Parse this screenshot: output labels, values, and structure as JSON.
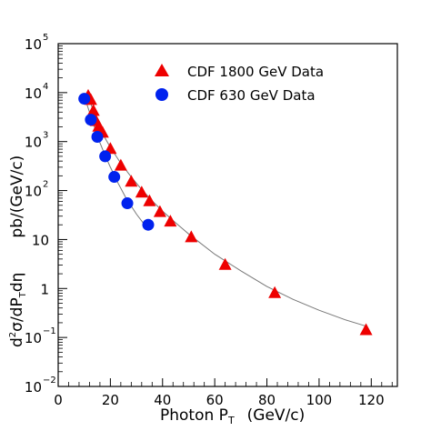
{
  "chart_data": {
    "type": "scatter",
    "xlabel": "Photon P_T  (GeV/c)",
    "ylabel": "d²σ/dP_T dη  pb/(GeV/c)",
    "xlim": [
      0,
      130
    ],
    "ylim": [
      0.01,
      100000
    ],
    "y_scale": "log",
    "grid": false,
    "legend_position": "top-right",
    "x_ticks": [
      0,
      20,
      40,
      60,
      80,
      100,
      120
    ],
    "y_ticks": [
      {
        "value": 0.01,
        "base": "10",
        "exp": "−2"
      },
      {
        "value": 0.1,
        "base": "10",
        "exp": "−1"
      },
      {
        "value": 1,
        "base": "1",
        "exp": ""
      },
      {
        "value": 10,
        "base": "10",
        "exp": ""
      },
      {
        "value": 100,
        "base": "10",
        "exp": "2"
      },
      {
        "value": 1000,
        "base": "10",
        "exp": "3"
      },
      {
        "value": 10000,
        "base": "10",
        "exp": "4"
      },
      {
        "value": 100000,
        "base": "10",
        "exp": "5"
      }
    ],
    "series": [
      {
        "name": "CDF 1800 GeV Data",
        "marker": "triangle",
        "color": "#ee0000",
        "points": [
          {
            "x": 11.5,
            "y": 8500
          },
          {
            "x": 12.5,
            "y": 7000
          },
          {
            "x": 13.5,
            "y": 4200
          },
          {
            "x": 14.5,
            "y": 2600
          },
          {
            "x": 15.5,
            "y": 2000
          },
          {
            "x": 17,
            "y": 1500
          },
          {
            "x": 20,
            "y": 700
          },
          {
            "x": 24,
            "y": 320
          },
          {
            "x": 28,
            "y": 150
          },
          {
            "x": 32,
            "y": 90
          },
          {
            "x": 35,
            "y": 60
          },
          {
            "x": 39,
            "y": 36
          },
          {
            "x": 43,
            "y": 23
          },
          {
            "x": 51,
            "y": 11
          },
          {
            "x": 64,
            "y": 3
          },
          {
            "x": 83,
            "y": 0.8
          },
          {
            "x": 118,
            "y": 0.14
          }
        ]
      },
      {
        "name": "CDF 630 GeV Data",
        "marker": "circle",
        "color": "#0022ee",
        "points": [
          {
            "x": 10,
            "y": 7500
          },
          {
            "x": 12.5,
            "y": 2800
          },
          {
            "x": 15,
            "y": 1250
          },
          {
            "x": 18,
            "y": 500
          },
          {
            "x": 21.5,
            "y": 190
          },
          {
            "x": 26.5,
            "y": 55
          },
          {
            "x": 34.5,
            "y": 20
          }
        ]
      }
    ],
    "curves": [
      {
        "label": "fit-1800",
        "color": "#777777",
        "points": [
          [
            11,
            10000
          ],
          [
            13,
            5000
          ],
          [
            15,
            2500
          ],
          [
            17,
            1450
          ],
          [
            20,
            760
          ],
          [
            24,
            360
          ],
          [
            28,
            190
          ],
          [
            32,
            105
          ],
          [
            36,
            62
          ],
          [
            40,
            38
          ],
          [
            45,
            22
          ],
          [
            50,
            13
          ],
          [
            60,
            5
          ],
          [
            70,
            2.3
          ],
          [
            80,
            1.1
          ],
          [
            90,
            0.6
          ],
          [
            100,
            0.36
          ],
          [
            110,
            0.23
          ],
          [
            118,
            0.17
          ]
        ]
      },
      {
        "label": "fit-630",
        "color": "#777777",
        "points": [
          [
            10,
            8500
          ],
          [
            12,
            4000
          ],
          [
            14,
            1900
          ],
          [
            16,
            950
          ],
          [
            18,
            520
          ],
          [
            20,
            300
          ],
          [
            23,
            140
          ],
          [
            26,
            70
          ],
          [
            30,
            33
          ],
          [
            34.5,
            16
          ]
        ]
      }
    ]
  }
}
